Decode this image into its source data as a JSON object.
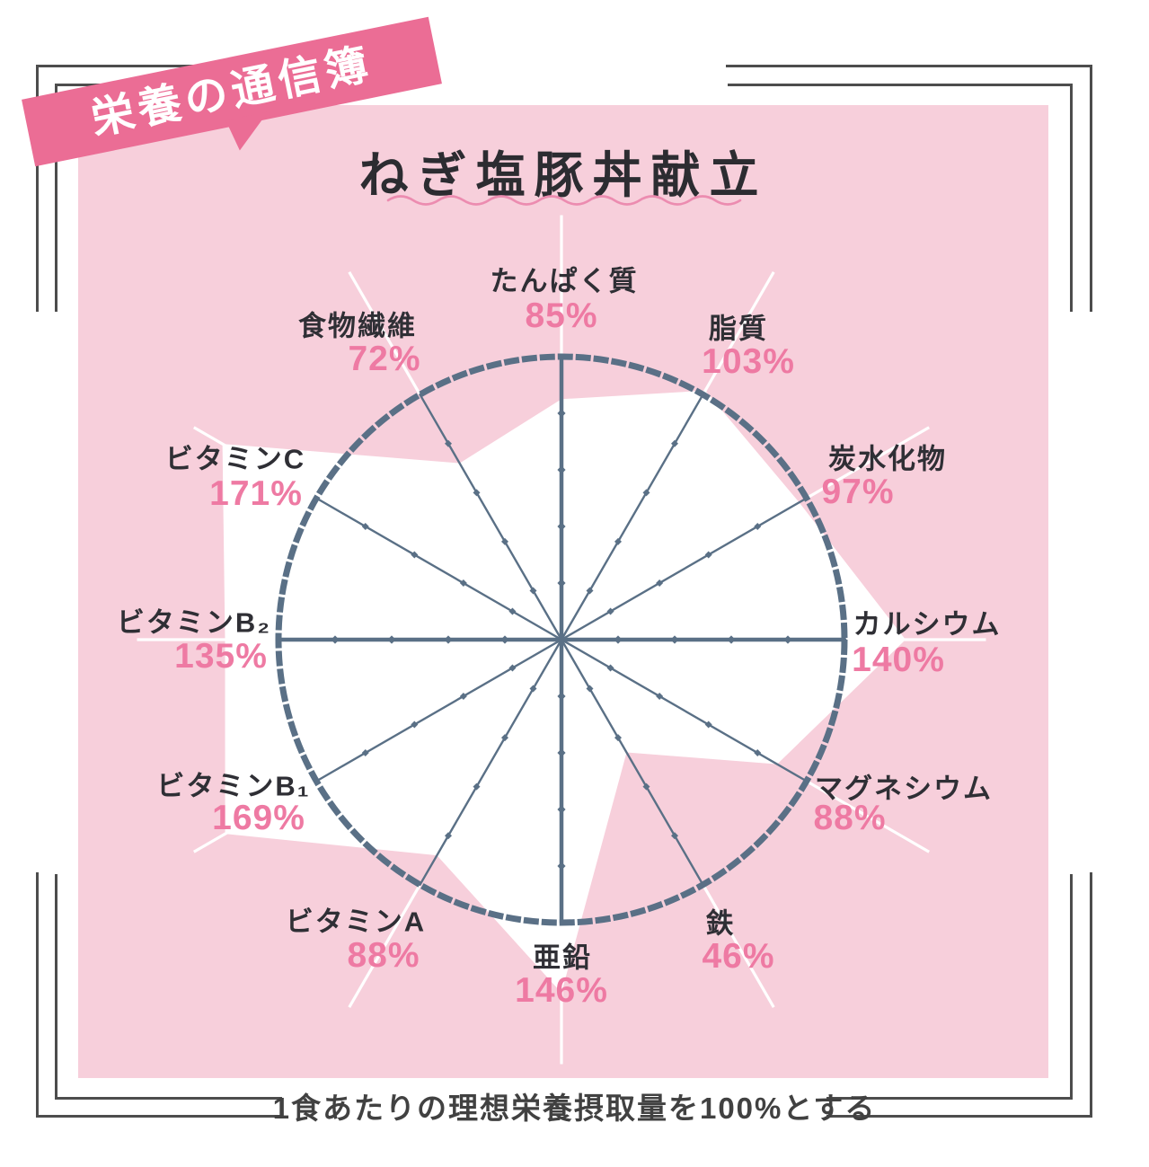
{
  "badge": {
    "label": "栄養の通信簿"
  },
  "title": "ねぎ塩豚丼献立",
  "footnote": "1食あたりの理想栄養摂取量を100%とする",
  "colors": {
    "card_pink": "#f7cfdb",
    "badge_pink": "#eb6d95",
    "value_pink": "#ee7aa3",
    "axis_slate": "#5a7086",
    "label_black": "#2f2f35",
    "frame_gray": "#4d4d4d",
    "polygon_white": "#ffffff"
  },
  "chart_data": {
    "type": "radar",
    "title": "ねぎ塩豚丼献立",
    "unit": "%",
    "reference_ring_pct": 100,
    "tick_step_pct": 20,
    "axes_count": 12,
    "categories": [
      "たんぱく質",
      "脂質",
      "炭水化物",
      "カルシウム",
      "マグネシウム",
      "鉄",
      "亜鉛",
      "ビタミンA",
      "ビタミンB₁",
      "ビタミンB₂",
      "ビタミンC",
      "食物繊維"
    ],
    "values": [
      85,
      103,
      97,
      140,
      88,
      46,
      146,
      88,
      169,
      135,
      171,
      72
    ],
    "points": [
      {
        "label": "たんぱく質",
        "value": 85,
        "value_label": "85%"
      },
      {
        "label": "脂質",
        "value": 103,
        "value_label": "103%"
      },
      {
        "label": "炭水化物",
        "value": 97,
        "value_label": "97%"
      },
      {
        "label": "カルシウム",
        "value": 140,
        "value_label": "140%"
      },
      {
        "label": "マグネシウム",
        "value": 88,
        "value_label": "88%"
      },
      {
        "label": "鉄",
        "value": 46,
        "value_label": "46%"
      },
      {
        "label": "亜鉛",
        "value": 146,
        "value_label": "146%"
      },
      {
        "label": "ビタミンA",
        "value": 88,
        "value_label": "88%"
      },
      {
        "label": "ビタミンB₁",
        "value": 169,
        "value_label": "169%"
      },
      {
        "label": "ビタミンB₂",
        "value": 135,
        "value_label": "135%"
      },
      {
        "label": "ビタミンC",
        "value": 171,
        "value_label": "171%"
      },
      {
        "label": "食物繊維",
        "value": 72,
        "value_label": "72%"
      }
    ],
    "note": "1食あたりの理想栄養摂取量を100%とする"
  }
}
